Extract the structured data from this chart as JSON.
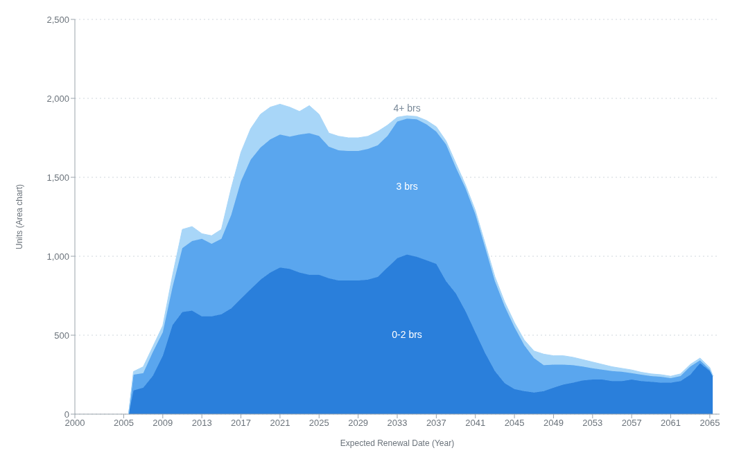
{
  "chart_data": {
    "type": "area",
    "stacked": true,
    "xlabel": "Expected Renewal Date (Year)",
    "ylabel": "Units (Area chart)",
    "x": [
      2005.5,
      2006,
      2007,
      2008,
      2009,
      2010,
      2011,
      2012,
      2013,
      2014,
      2015,
      2016,
      2017,
      2018,
      2019,
      2020,
      2021,
      2022,
      2023,
      2024,
      2025,
      2026,
      2027,
      2028,
      2029,
      2030,
      2031,
      2032,
      2033,
      2034,
      2035,
      2036,
      2037,
      2038,
      2039,
      2040,
      2041,
      2042,
      2043,
      2044,
      2045,
      2046,
      2047,
      2048,
      2049,
      2050,
      2051,
      2052,
      2053,
      2054,
      2055,
      2056,
      2057,
      2058,
      2059,
      2060,
      2061,
      2062,
      2063,
      2064,
      2065,
      2065.3
    ],
    "series": [
      {
        "name": "0-2 brs",
        "color": "#2a7fdb",
        "values": [
          0,
          150,
          168,
          245,
          369,
          565,
          647,
          656,
          620,
          620,
          633,
          670,
          733,
          792,
          852,
          897,
          929,
          920,
          897,
          883,
          883,
          861,
          847,
          847,
          847,
          852,
          870,
          929,
          988,
          1011,
          997,
          975,
          952,
          842,
          765,
          651,
          519,
          387,
          273,
          196,
          159,
          146,
          137,
          146,
          168,
          187,
          200,
          214,
          219,
          219,
          209,
          209,
          219,
          209,
          205,
          200,
          200,
          209,
          250,
          323,
          273,
          241
        ]
      },
      {
        "name": "3 brs",
        "color": "#5aa6ee",
        "values": [
          0,
          100,
          92,
          151,
          150,
          241,
          405,
          441,
          491,
          459,
          478,
          591,
          742,
          820,
          837,
          843,
          842,
          838,
          874,
          897,
          879,
          833,
          824,
          820,
          820,
          828,
          833,
          833,
          865,
          861,
          870,
          860,
          838,
          866,
          797,
          779,
          747,
          669,
          569,
          487,
          392,
          291,
          218,
          164,
          146,
          127,
          110,
          87,
          72,
          63,
          64,
          60,
          41,
          41,
          36,
          37,
          28,
          32,
          51,
          18,
          9,
          0
        ]
      },
      {
        "name": "4+ brs",
        "color": "#a8d6f8",
        "values": [
          0,
          20,
          40,
          34,
          41,
          74,
          118,
          91,
          32,
          51,
          59,
          169,
          183,
          196,
          210,
          204,
          192,
          186,
          146,
          174,
          137,
          86,
          89,
          83,
          83,
          80,
          87,
          68,
          27,
          18,
          18,
          25,
          30,
          22,
          28,
          20,
          24,
          24,
          28,
          27,
          29,
          33,
          45,
          70,
          56,
          56,
          50,
          44,
          39,
          33,
          27,
          21,
          20,
          15,
          14,
          13,
          12,
          14,
          14,
          14,
          13,
          4
        ]
      }
    ],
    "xlim": [
      2000,
      2066
    ],
    "xticks": [
      2000,
      2005,
      2009,
      2013,
      2017,
      2021,
      2025,
      2029,
      2033,
      2037,
      2041,
      2045,
      2049,
      2053,
      2057,
      2061,
      2065
    ],
    "ylim": [
      0,
      2500
    ],
    "yticks": [
      0,
      {
        "value": 500,
        "label": "500"
      },
      {
        "value": 1000,
        "label": "1,000"
      },
      {
        "value": 1500,
        "label": "1,500"
      },
      {
        "value": 2000,
        "label": "2,000"
      },
      {
        "value": 2500,
        "label": "2,500"
      }
    ],
    "grid": "y"
  }
}
